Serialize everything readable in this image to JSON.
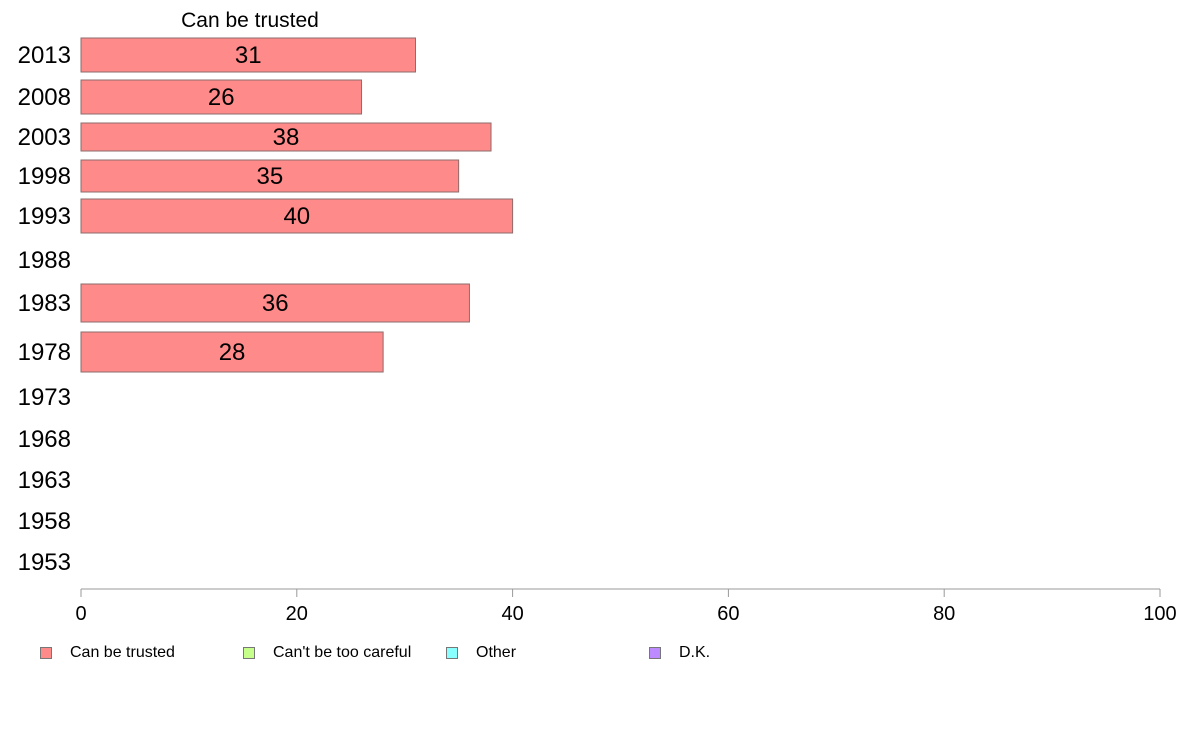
{
  "chart_data": {
    "type": "bar",
    "orientation": "horizontal",
    "title": "Can be trusted",
    "categories": [
      "2013",
      "2008",
      "2003",
      "1998",
      "1993",
      "1988",
      "1983",
      "1978",
      "1973",
      "1968",
      "1963",
      "1958",
      "1953"
    ],
    "series": [
      {
        "name": "Can be trusted",
        "color": "#ff8a8a",
        "values": [
          31,
          26,
          38,
          35,
          40,
          null,
          36,
          28,
          null,
          null,
          null,
          null,
          null
        ]
      }
    ],
    "xlim": [
      0,
      100
    ],
    "xticks": [
      "0",
      "20",
      "40",
      "60",
      "80",
      "100"
    ],
    "grid": false,
    "legend": {
      "placement": "bottom",
      "items": [
        {
          "label": "Can be trusted",
          "color": "#ff8a8a"
        },
        {
          "label": "Can't be too careful",
          "color": "#c6ff8a"
        },
        {
          "label": "Other",
          "color": "#8affff"
        },
        {
          "label": "D.K.",
          "color": "#bd8aff"
        }
      ]
    }
  }
}
